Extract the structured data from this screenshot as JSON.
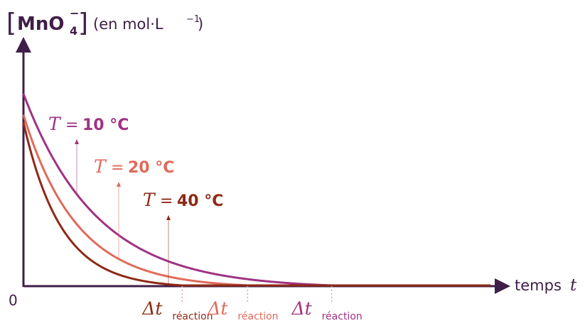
{
  "colors": {
    "axis": "#3f1e47",
    "series_10": "#a03282",
    "series_20": "#e06a5a",
    "series_40": "#8e2a17",
    "dotted": "#c9a7b0"
  },
  "chart_data": {
    "type": "line",
    "title": "",
    "ylabel": {
      "formula_main": "MnO",
      "formula_sub": "4",
      "formula_sup": "−",
      "units": "(en mol·L",
      "units_sup": "−1",
      "units_close": ")"
    },
    "xlabel": {
      "text": "temps ",
      "var": "t"
    },
    "origin_label": "0",
    "series": [
      {
        "name": "T = 10 °C",
        "var": "T",
        "eq": "=",
        "value": "10 °C",
        "start_y": 1.0,
        "end_time": 0.66
      },
      {
        "name": "T = 20 °C",
        "var": "T",
        "eq": "=",
        "value": "20 °C",
        "start_y": 0.89,
        "end_time": 0.48
      },
      {
        "name": "T = 40 °C",
        "var": "T",
        "eq": "=",
        "value": "40 °C",
        "start_y": 0.85,
        "end_time": 0.34
      }
    ],
    "delta_labels": [
      {
        "delta": "Δt",
        "sub": "réaction",
        "series": "T = 40 °C"
      },
      {
        "delta": "Δt",
        "sub": "réaction",
        "series": "T = 20 °C"
      },
      {
        "delta": "Δt",
        "sub": "réaction",
        "series": "T = 10 °C"
      }
    ],
    "y_axis_ticks": "none",
    "x_axis_ticks": "none",
    "grid": false,
    "legend": "inline labels"
  }
}
